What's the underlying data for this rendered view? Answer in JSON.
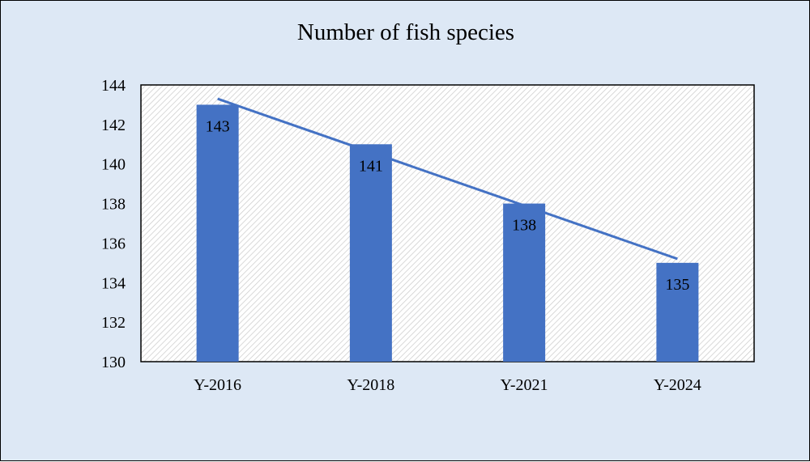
{
  "chart_data": {
    "type": "bar",
    "title": "Number of fish species",
    "categories": [
      "Y-2016",
      "Y-2018",
      "Y-2021",
      "Y-2024"
    ],
    "values": [
      143,
      141,
      138,
      135
    ],
    "data_labels": [
      "143",
      "141",
      "138",
      "135"
    ],
    "ylim": [
      130,
      144
    ],
    "yticks": [
      130,
      132,
      134,
      136,
      138,
      140,
      142,
      144
    ],
    "xlabel": "",
    "ylabel": "",
    "trendline": {
      "type": "linear",
      "color": "#4472c4"
    },
    "bar_color": "#4472c4",
    "background_color": "#dde8f5",
    "plot_area_pattern": "diagonal-hatch",
    "grid": false,
    "legend": "none"
  }
}
